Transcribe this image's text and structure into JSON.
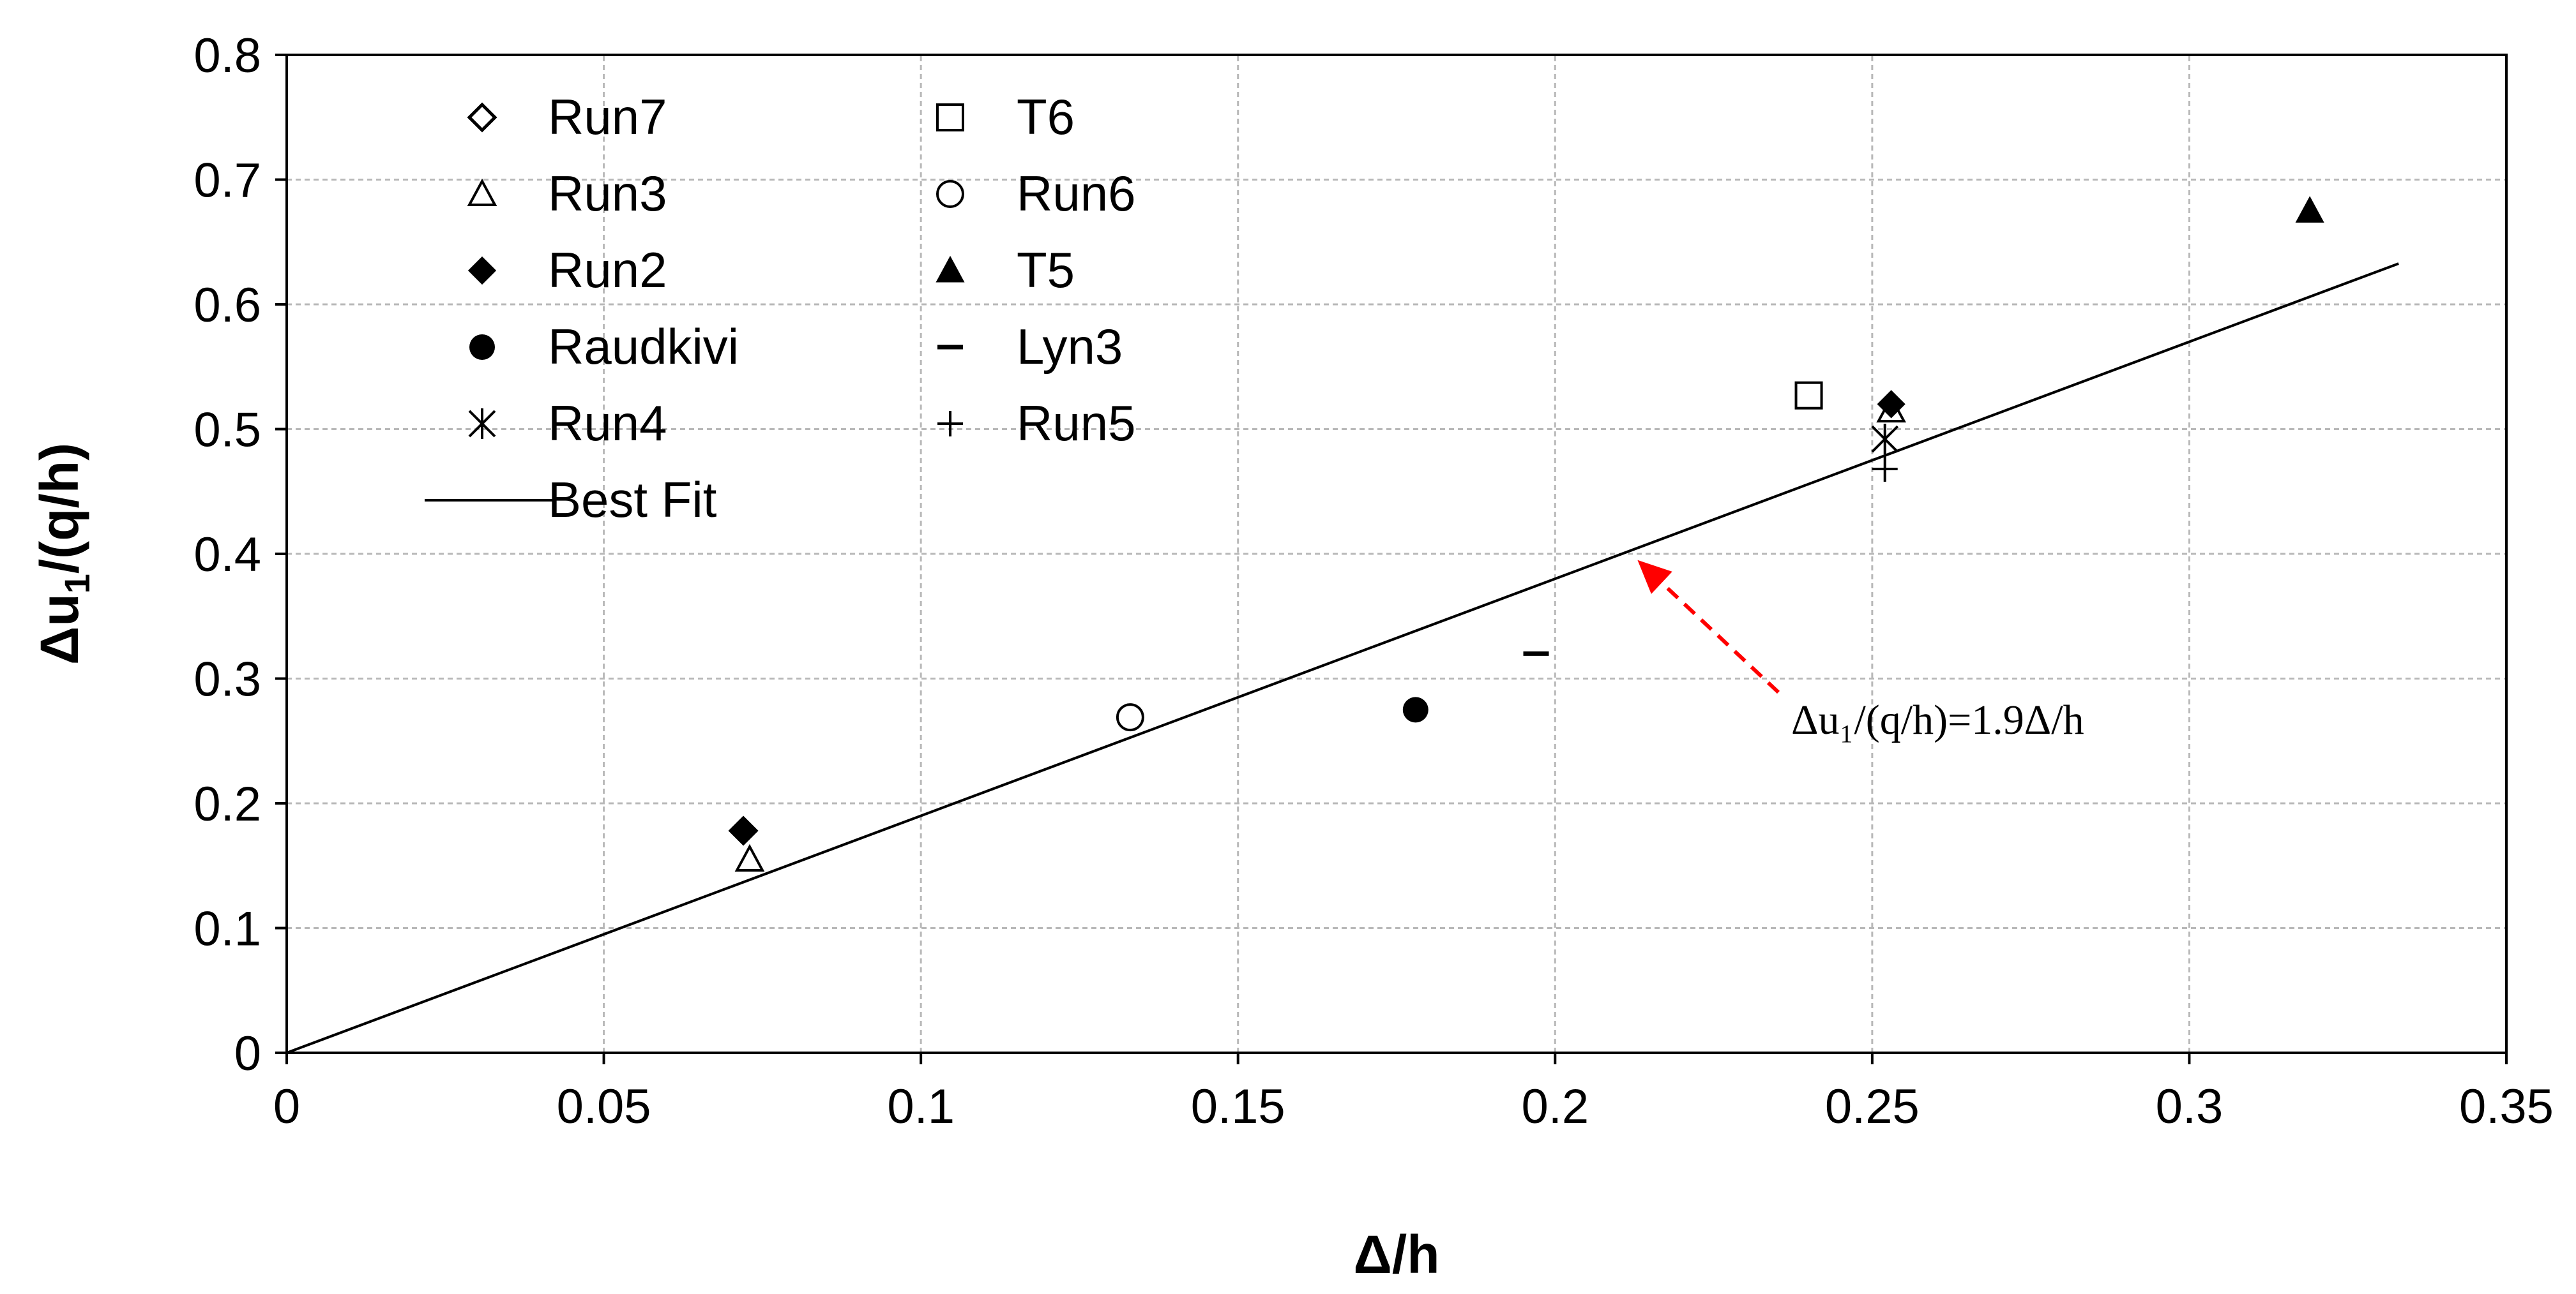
{
  "chart_data": {
    "type": "scatter",
    "title": "",
    "xlabel": "Δ/h",
    "ylabel_main": "Δu",
    "ylabel_sub": "1",
    "ylabel_rest": "/(q/h)",
    "xlim": [
      0,
      0.35
    ],
    "ylim": [
      0,
      0.8
    ],
    "xticks": [
      "0",
      "0.05",
      "0.1",
      "0.15",
      "0.2",
      "0.25",
      "0.3",
      "0.35"
    ],
    "yticks": [
      "0",
      "0.1",
      "0.2",
      "0.3",
      "0.4",
      "0.5",
      "0.6",
      "0.7",
      "0.8"
    ],
    "xtick_values": [
      0,
      0.05,
      0.1,
      0.15,
      0.2,
      0.25,
      0.3,
      0.35
    ],
    "ytick_values": [
      0,
      0.1,
      0.2,
      0.3,
      0.4,
      0.5,
      0.6,
      0.7,
      0.8
    ],
    "grid": true,
    "series": [
      {
        "name": "Run7",
        "marker": "diamond-open",
        "points": [
          [
            0.072,
            0.178
          ]
        ]
      },
      {
        "name": "Run3",
        "marker": "triangle-open",
        "points": [
          [
            0.073,
            0.155
          ],
          [
            0.253,
            0.515
          ]
        ]
      },
      {
        "name": "Run2",
        "marker": "diamond-filled",
        "points": [
          [
            0.072,
            0.178
          ],
          [
            0.253,
            0.52
          ]
        ]
      },
      {
        "name": "Raudkivi",
        "marker": "circle-filled",
        "points": [
          [
            0.178,
            0.275
          ]
        ]
      },
      {
        "name": "Run4",
        "marker": "asterisk",
        "points": [
          [
            0.252,
            0.492
          ]
        ]
      },
      {
        "name": "T6",
        "marker": "square-open",
        "points": [
          [
            0.24,
            0.527
          ]
        ]
      },
      {
        "name": "Run6",
        "marker": "circle-open",
        "points": [
          [
            0.133,
            0.269
          ]
        ]
      },
      {
        "name": "T5",
        "marker": "triangle-filled",
        "points": [
          [
            0.319,
            0.675
          ]
        ]
      },
      {
        "name": "Lyn3",
        "marker": "dash",
        "points": [
          [
            0.197,
            0.32
          ]
        ]
      },
      {
        "name": "Run5",
        "marker": "plus",
        "points": [
          [
            0.252,
            0.468
          ]
        ]
      }
    ],
    "best_fit": {
      "name": "Best Fit",
      "slope": 1.9,
      "x_range": [
        0,
        0.333
      ]
    },
    "annotation": {
      "text": "Δu₁/(q/h)=1.9Δ/h",
      "arrow_color": "#ff0000",
      "target": [
        0.213,
        0.395
      ]
    }
  },
  "legend": {
    "col1": [
      {
        "label": "Run7",
        "marker": "diamond-open"
      },
      {
        "label": "Run3",
        "marker": "triangle-open"
      },
      {
        "label": "Run2",
        "marker": "diamond-filled"
      },
      {
        "label": "Raudkivi",
        "marker": "circle-filled"
      },
      {
        "label": "Run4",
        "marker": "asterisk"
      },
      {
        "label": "Best Fit",
        "marker": "line"
      }
    ],
    "col2": [
      {
        "label": "T6",
        "marker": "square-open"
      },
      {
        "label": "Run6",
        "marker": "circle-open"
      },
      {
        "label": "T5",
        "marker": "triangle-filled"
      },
      {
        "label": "Lyn3",
        "marker": "dash"
      },
      {
        "label": "Run5",
        "marker": "plus"
      }
    ]
  }
}
